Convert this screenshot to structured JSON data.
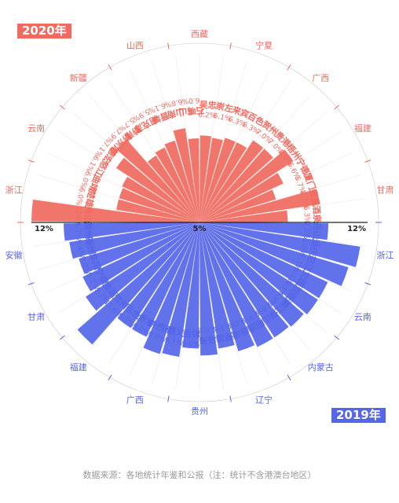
{
  "source_note": "数据来源：各地统计年鉴和公报（注：统计不含港澳台地区）",
  "chart_data": [
    {
      "type": "polar-bar",
      "legend": "2020年",
      "unit": "%",
      "color": "#ef6a5f",
      "categories": [
        "舟山",
        "楚雄",
        "曲靖",
        "怒江",
        "德宏",
        "黔东南",
        "黔南",
        "阿克苏",
        "晋城",
        "山南",
        "石嘴山",
        "吴忠",
        "崇左",
        "来宾",
        "百色",
        "贺州",
        "贵港",
        "梧州",
        "宁德",
        "厦门",
        "金昌",
        "酒泉"
      ],
      "values": [
        12,
        6.0,
        6.0,
        6.1,
        7.1,
        7.9,
        5.7,
        5.9,
        6.1,
        6.8,
        6.0,
        6.2,
        6.1,
        6.3,
        6.3,
        7.0,
        7.0,
        8.0,
        6.6,
        5.7,
        8.7,
        6.3
      ],
      "value_labels": [
        "12%",
        "6.0%",
        "6.0%",
        "6.1%",
        "7.1%",
        "7.9%",
        "5.7%",
        "5.9%",
        "6.1%",
        "6.8%",
        "6.0%",
        "6.2%",
        "6.1%",
        "6.3%",
        "6.3%",
        "7.0%",
        "7.0%",
        "8.0%",
        "6.6%",
        "5.7%",
        "8.7%",
        "6.3%"
      ],
      "groups": [
        "浙江",
        "云南",
        "新疆",
        "山西",
        "西藏",
        "宁夏",
        "广西",
        "福建",
        "甘肃"
      ]
    },
    {
      "type": "polar-bar",
      "legend": "2019年",
      "unit": "%",
      "color": "#5566e8",
      "categories": [
        "舟山",
        "迪庆",
        "怒江",
        "文山",
        "西双版纳",
        "丽江",
        "保山",
        "昭通",
        "曲靖",
        "楚雄",
        "乌海",
        "盘锦",
        "遵义",
        "黔西南",
        "贵港",
        "百色",
        "贺州",
        "金昌",
        "宁德",
        "阜阳",
        "亳州",
        "滁州"
      ],
      "values": [
        9.2,
        11.6,
        11.1,
        10.1,
        10.1,
        9.9,
        9.8,
        9.8,
        9.6,
        9.1,
        9.5,
        9.0,
        9.7,
        9.8,
        9.0,
        9.0,
        11.6,
        9.7,
        9.2,
        9.0,
        9.4,
        9.7
      ],
      "value_labels": [
        "9.2%",
        "11.6%",
        "11.1%",
        "10.1%",
        "10.1%",
        "9.9%",
        "9.8%",
        "9.8%",
        "9.6%",
        "9.1%",
        "9.5%",
        "9.0%",
        "9.7%",
        "9.8%",
        "9.0%",
        "9.0%",
        "11.6%",
        "9.7%",
        "9.2%",
        "9.0%",
        "9.4%",
        "9.7%"
      ],
      "groups": [
        "浙江",
        "云南",
        "内蒙古",
        "辽宁",
        "贵州",
        "广西",
        "福建",
        "甘肃",
        "安徽"
      ]
    }
  ],
  "axis": {
    "max": 12,
    "ring_values": [
      5,
      12
    ],
    "tick_labels": {
      "left": "12%",
      "center": "5%",
      "right": "12%"
    }
  }
}
